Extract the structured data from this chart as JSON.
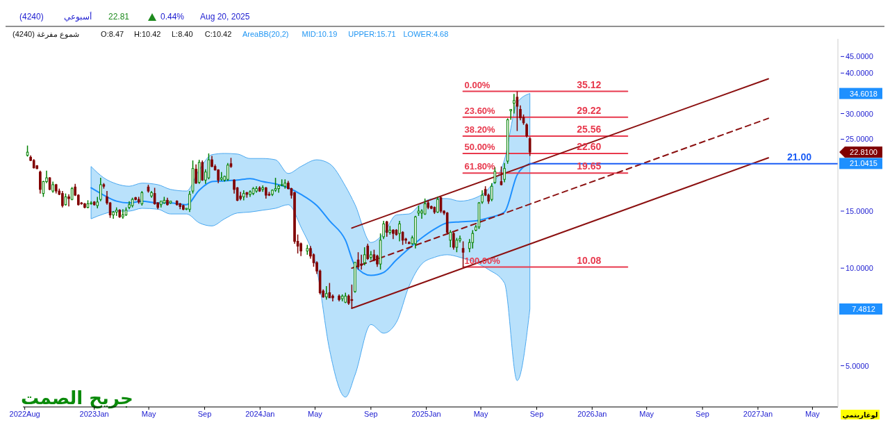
{
  "chart_data": {
    "type": "candlestick",
    "log": true,
    "xlim": [
      "2022-07-28",
      "2027-06-26"
    ],
    "xticks": [
      {
        "value": "2022-08-01",
        "label": "2022Aug"
      },
      {
        "value": "2023-01-01",
        "label": "2023Jan"
      },
      {
        "value": "2023-05-01",
        "label": "May"
      },
      {
        "value": "2023-09-01",
        "label": "Sep"
      },
      {
        "value": "2024-01-01",
        "label": "2024Jan"
      },
      {
        "value": "2024-05-01",
        "label": "May"
      },
      {
        "value": "2024-09-01",
        "label": "Sep"
      },
      {
        "value": "2025-01-01",
        "label": "2025Jan"
      },
      {
        "value": "2025-05-01",
        "label": "May"
      },
      {
        "value": "2025-09-01",
        "label": "Sep"
      },
      {
        "value": "2026-01-01",
        "label": "2026Jan"
      },
      {
        "value": "2026-05-01",
        "label": "May"
      },
      {
        "value": "2026-09-01",
        "label": "Sep"
      },
      {
        "value": "2027-01-01",
        "label": "2027Jan"
      },
      {
        "value": "2027-05-01",
        "label": "May"
      }
    ],
    "ylim": [
      3.73,
      51
    ],
    "yticks": [
      {
        "value": 5,
        "label": "5.0000"
      },
      {
        "value": 10,
        "label": "10.0000"
      },
      {
        "value": 15,
        "label": "15.0000"
      },
      {
        "value": 25,
        "label": "25.0000"
      },
      {
        "value": 30,
        "label": "30.0000"
      },
      {
        "value": 40,
        "label": "40.0000"
      },
      {
        "value": 45,
        "label": "45.0000"
      }
    ],
    "annotations": [
      "(4240)",
      "أسبوعي",
      "22.81",
      "0.44%",
      "Aug 20, 2025",
      "(4240) شموع مفرغة",
      "O:8.47",
      "H:10.42",
      "L:8.40",
      "C:10.42",
      "MID:10.19",
      "UPPER:15.71",
      "LOWER:4.68",
      "جريح الصمت",
      "لوغاريتمي",
      "34.6018",
      "22.8100",
      "21.0415",
      "7.4812",
      {
        "text": "0.00%",
        "x": "2025-03-23",
        "y": 35.12
      },
      {
        "text": "35.12",
        "x": "2026-03-20",
        "y": 35.12
      },
      {
        "text": "23.60%",
        "x": "2025-03-23",
        "y": 29.22
      },
      {
        "text": "29.22",
        "x": "2026-03-20",
        "y": 29.22
      },
      {
        "text": "38.20%",
        "x": "2025-03-23",
        "y": 25.56
      },
      {
        "text": "25.56",
        "x": "2026-03-20",
        "y": 25.56
      },
      {
        "text": "50.00%",
        "x": "2025-03-23",
        "y": 22.6
      },
      {
        "text": "22.60",
        "x": "2026-03-20",
        "y": 22.6
      },
      {
        "text": "61.80%",
        "x": "2025-03-23",
        "y": 19.65
      },
      {
        "text": "19.65",
        "x": "2026-03-20",
        "y": 19.65
      },
      {
        "text": "100.00%",
        "x": "2025-03-23",
        "y": 10.08
      },
      {
        "text": "10.08",
        "x": "2026-03-20",
        "y": 10.08
      },
      {
        "text": "21.00",
        "x": "2027-06-26",
        "y": 21
      }
    ],
    "series": [
      {
        "type": "line",
        "name": "AreaBB(20,2)",
        "color": "#1e90ff",
        "x": [
          "2022-12-25",
          "2023-01-22",
          "2023-02-19",
          "2023-03-19",
          "2023-04-16",
          "2023-05-21",
          "2023-06-18",
          "2023-07-23",
          "2023-08-20",
          "2023-09-17",
          "2023-10-15",
          "2023-11-12",
          "2023-12-10",
          "2024-01-07",
          "2024-02-04",
          "2024-03-03",
          "2024-03-31",
          "2024-05-05",
          "2024-06-02",
          "2024-07-07",
          "2024-07-28",
          "2024-09-01",
          "2024-09-29",
          "2024-10-27",
          "2024-11-24",
          "2024-12-22",
          "2025-01-19",
          "2025-02-16",
          "2025-03-16",
          "2025-04-20",
          "2025-05-18",
          "2025-06-22",
          "2025-07-20",
          "2025-08-17"
        ],
        "values": [
          17.7,
          16.8,
          16.1,
          15.9,
          16.1,
          15.9,
          15.9,
          15.7,
          17.4,
          18.5,
          18.6,
          18.7,
          18.9,
          18.5,
          18.2,
          17.7,
          16.9,
          15.6,
          14.0,
          12.2,
          10.19,
          9.5,
          9.7,
          10.6,
          11.5,
          12.4,
          13.2,
          13.8,
          13.9,
          14.0,
          14.3,
          14.9,
          19.4,
          21.0415
        ],
        "upper": [
          20.6,
          19.0,
          18.2,
          17.9,
          18.3,
          18.1,
          17.5,
          17.3,
          20.1,
          22.4,
          22.6,
          22.5,
          21.8,
          21.8,
          21.6,
          19.6,
          20.6,
          21.6,
          21.0,
          17.9,
          15.71,
          12.0,
          12.8,
          14.6,
          14.7,
          15.9,
          16.4,
          16.4,
          16.1,
          16.5,
          17.6,
          21.6,
          32.4,
          34.6018
        ],
        "lower": [
          14.2,
          14.7,
          15.0,
          15.0,
          15.3,
          15.2,
          14.7,
          14.7,
          13.8,
          13.5,
          14.2,
          14.8,
          14.9,
          15.1,
          15.3,
          15.7,
          13.4,
          9.9,
          5.6,
          4.0,
          4.68,
          6.7,
          6.3,
          6.8,
          8.8,
          10.3,
          10.8,
          11.0,
          10.8,
          10.4,
          9.9,
          9.0,
          4.5,
          7.4812
        ]
      },
      {
        "type": "candlestick",
        "colors": [
          "#008000",
          "#800000",
          "#800000",
          "#800000",
          "#800000",
          "#008000",
          "#008000",
          "#800000",
          "#008000",
          "#800000",
          "#800000",
          "#800000",
          "#008000",
          "#800000",
          "#008000",
          "#800000",
          "#800000",
          "#800000",
          "#800000",
          "#008000",
          "#008000",
          "#800000",
          "#008000",
          "#008000",
          "#800000",
          "#800000",
          "#800000",
          "#008000",
          "#008000",
          "#800000",
          "#008000",
          "#008000",
          "#008000",
          "#008000",
          "#800000",
          "#800000",
          "#008000",
          "#800000",
          "#008000",
          "#800000",
          "#800000",
          "#008000",
          "#008000",
          "#800000",
          "#008000",
          "#800000",
          "#800000",
          "#800000",
          "#008000",
          "#008000",
          "#008000",
          "#800000",
          "#008000",
          "#800000",
          "#008000",
          "#008000",
          "#800000",
          "#800000",
          "#800000",
          "#008000",
          "#008000",
          "#008000",
          "#800000",
          "#800000",
          "#800000",
          "#800000",
          "#008000",
          "#800000",
          "#008000",
          "#008000",
          "#008000",
          "#800000",
          "#008000",
          "#800000",
          "#800000",
          "#008000",
          "#008000",
          "#008000",
          "#008000",
          "#008000",
          "#800000",
          "#800000",
          "#800000",
          "#800000",
          "#800000",
          "#008000",
          "#800000",
          "#800000",
          "#800000",
          "#800000",
          "#800000",
          "#008000",
          "#800000",
          "#800000",
          "#800000",
          "#008000",
          "#008000",
          "#800000",
          "#800000",
          "#008000",
          "#800000",
          "#800000",
          "#008000",
          "#800000",
          "#008000",
          "#800000",
          "#800000",
          "#008000",
          "#008000",
          "#800000",
          "#008000",
          "#800000",
          "#800000",
          "#008000",
          "#800000",
          "#800000",
          "#800000",
          "#008000",
          "#008000",
          "#008000",
          "#008000",
          "#008000",
          "#800000",
          "#800000",
          "#800000",
          "#008000",
          "#800000",
          "#800000",
          "#800000",
          "#008000",
          "#800000",
          "#008000",
          "#008000",
          "#800000",
          "#008000",
          "#008000",
          "#008000",
          "#008000",
          "#008000",
          "#800000",
          "#800000",
          "#008000",
          "#008000",
          "#800000",
          "#008000",
          "#008000",
          "#008000",
          "#008000",
          "#800000",
          "#800000",
          "#800000",
          "#800000",
          "#800000"
        ],
        "x": [
          "2022-08-07",
          "2022-08-14",
          "2022-08-21",
          "2022-08-28",
          "2022-09-04",
          "2022-09-11",
          "2022-09-18",
          "2022-09-25",
          "2022-10-02",
          "2022-10-09",
          "2022-10-16",
          "2022-10-23",
          "2022-10-30",
          "2022-11-06",
          "2022-11-13",
          "2022-11-20",
          "2022-11-27",
          "2022-12-04",
          "2022-12-11",
          "2022-12-18",
          "2022-12-25",
          "2023-01-01",
          "2023-01-08",
          "2023-01-15",
          "2023-01-22",
          "2023-01-29",
          "2023-02-05",
          "2023-02-12",
          "2023-02-19",
          "2023-02-26",
          "2023-03-05",
          "2023-03-12",
          "2023-03-19",
          "2023-03-26",
          "2023-04-02",
          "2023-04-09",
          "2023-04-16",
          "2023-04-30",
          "2023-05-07",
          "2023-05-14",
          "2023-05-21",
          "2023-05-28",
          "2023-06-04",
          "2023-06-11",
          "2023-06-18",
          "2023-07-02",
          "2023-07-09",
          "2023-07-16",
          "2023-07-23",
          "2023-07-30",
          "2023-08-06",
          "2023-08-13",
          "2023-08-20",
          "2023-08-27",
          "2023-09-03",
          "2023-09-10",
          "2023-09-17",
          "2023-09-24",
          "2023-10-01",
          "2023-10-08",
          "2023-10-15",
          "2023-10-22",
          "2023-10-29",
          "2023-11-05",
          "2023-11-12",
          "2023-11-19",
          "2023-11-26",
          "2023-12-03",
          "2023-12-10",
          "2023-12-17",
          "2023-12-24",
          "2023-12-31",
          "2024-01-07",
          "2024-01-14",
          "2024-01-21",
          "2024-01-28",
          "2024-02-04",
          "2024-02-11",
          "2024-02-18",
          "2024-02-25",
          "2024-03-03",
          "2024-03-10",
          "2024-03-17",
          "2024-03-24",
          "2024-03-31",
          "2024-04-14",
          "2024-04-21",
          "2024-04-28",
          "2024-05-05",
          "2024-05-12",
          "2024-05-19",
          "2024-05-26",
          "2024-06-02",
          "2024-06-09",
          "2024-06-23",
          "2024-06-30",
          "2024-07-07",
          "2024-07-14",
          "2024-07-21",
          "2024-07-28",
          "2024-08-04",
          "2024-08-11",
          "2024-08-18",
          "2024-08-25",
          "2024-09-01",
          "2024-09-08",
          "2024-09-15",
          "2024-09-22",
          "2024-09-29",
          "2024-10-06",
          "2024-10-13",
          "2024-10-20",
          "2024-10-27",
          "2024-11-03",
          "2024-11-10",
          "2024-11-17",
          "2024-11-24",
          "2024-12-01",
          "2024-12-08",
          "2024-12-15",
          "2024-12-22",
          "2024-12-29",
          "2025-01-05",
          "2025-01-12",
          "2025-01-19",
          "2025-01-26",
          "2025-02-02",
          "2025-02-09",
          "2025-02-16",
          "2025-02-23",
          "2025-03-02",
          "2025-03-09",
          "2025-03-16",
          "2025-03-23",
          "2025-04-06",
          "2025-04-13",
          "2025-04-20",
          "2025-04-27",
          "2025-05-04",
          "2025-05-11",
          "2025-05-18",
          "2025-05-25",
          "2025-06-01",
          "2025-06-15",
          "2025-06-22",
          "2025-06-29",
          "2025-07-06",
          "2025-07-13",
          "2025-07-20",
          "2025-07-27",
          "2025-08-03",
          "2025-08-10",
          "2025-08-17"
        ],
        "ohlc": [
          [
            22.3,
            23.9,
            22.1,
            22.8
          ],
          [
            22.0,
            22.3,
            21.4,
            21.5
          ],
          [
            21.5,
            21.7,
            20.3,
            20.4
          ],
          [
            20.7,
            20.8,
            20.2,
            20.3
          ],
          [
            19.8,
            20.0,
            17.0,
            17.5
          ],
          [
            17.0,
            18.6,
            16.6,
            18.5
          ],
          [
            18.5,
            20.0,
            18.3,
            19.0
          ],
          [
            19.0,
            19.1,
            17.4,
            17.5
          ],
          [
            17.3,
            18.5,
            17.1,
            18.1
          ],
          [
            18.1,
            18.2,
            17.0,
            17.3
          ],
          [
            17.3,
            17.6,
            16.8,
            16.9
          ],
          [
            17.0,
            17.3,
            15.4,
            15.6
          ],
          [
            15.7,
            17.0,
            15.6,
            16.6
          ],
          [
            16.6,
            16.9,
            15.5,
            16.4
          ],
          [
            16.3,
            17.8,
            16.2,
            17.6
          ],
          [
            17.8,
            18.2,
            16.7,
            16.8
          ],
          [
            16.8,
            16.9,
            15.6,
            15.7
          ],
          [
            15.9,
            16.0,
            15.7,
            15.8
          ],
          [
            15.8,
            15.9,
            15.3,
            15.4
          ],
          [
            15.4,
            16.2,
            15.3,
            15.8
          ],
          [
            15.8,
            16.1,
            15.7,
            15.9
          ],
          [
            16.0,
            16.1,
            15.6,
            15.7
          ],
          [
            15.6,
            16.6,
            15.3,
            16.0
          ],
          [
            16.3,
            19.0,
            16.1,
            18.1
          ],
          [
            18.1,
            18.3,
            17.6,
            17.9
          ],
          [
            16.6,
            17.3,
            15.7,
            15.9
          ],
          [
            15.9,
            16.0,
            14.3,
            14.6
          ],
          [
            14.6,
            15.0,
            14.2,
            14.9
          ],
          [
            14.9,
            15.4,
            14.5,
            15.1
          ],
          [
            15.1,
            15.2,
            14.3,
            14.4
          ],
          [
            14.4,
            15.2,
            14.2,
            14.6
          ],
          [
            14.6,
            15.4,
            14.5,
            15.1
          ],
          [
            15.4,
            16.1,
            15.2,
            15.7
          ],
          [
            15.6,
            16.5,
            15.4,
            16.3
          ],
          [
            16.5,
            16.6,
            16.2,
            16.3
          ],
          [
            16.3,
            16.6,
            15.8,
            16.0
          ],
          [
            15.8,
            17.3,
            15.6,
            17.1
          ],
          [
            17.8,
            18.1,
            17.1,
            17.3
          ],
          [
            16.7,
            17.3,
            16.5,
            17.1
          ],
          [
            17.0,
            17.7,
            15.7,
            15.8
          ],
          [
            15.9,
            16.0,
            15.2,
            15.4
          ],
          [
            15.7,
            16.1,
            15.4,
            16.1
          ],
          [
            15.9,
            16.6,
            15.8,
            16.2
          ],
          [
            16.2,
            16.5,
            15.6,
            15.7
          ],
          [
            15.9,
            16.1,
            15.8,
            16.1
          ],
          [
            16.1,
            16.2,
            15.6,
            15.7
          ],
          [
            15.8,
            15.9,
            15.2,
            15.5
          ],
          [
            15.6,
            15.7,
            15.1,
            15.2
          ],
          [
            15.2,
            15.3,
            15.1,
            15.3
          ],
          [
            15.2,
            17.3,
            14.9,
            16.9
          ],
          [
            17.3,
            21.5,
            17.0,
            20.3
          ],
          [
            20.2,
            20.9,
            18.2,
            18.3
          ],
          [
            18.4,
            21.6,
            18.2,
            21.2
          ],
          [
            21.2,
            21.5,
            18.6,
            18.7
          ],
          [
            18.7,
            20.2,
            18.2,
            19.8
          ],
          [
            19.0,
            22.6,
            18.8,
            21.6
          ],
          [
            21.6,
            22.2,
            20.5,
            20.6
          ],
          [
            20.6,
            20.9,
            20.0,
            20.1
          ],
          [
            20.1,
            20.2,
            18.3,
            18.7
          ],
          [
            18.8,
            19.8,
            18.6,
            19.0
          ],
          [
            18.7,
            19.3,
            18.5,
            19.2
          ],
          [
            18.8,
            21.1,
            18.6,
            20.8
          ],
          [
            21.0,
            21.9,
            20.4,
            20.6
          ],
          [
            18.7,
            18.8,
            17.0,
            17.5
          ],
          [
            17.7,
            17.8,
            16.1,
            16.2
          ],
          [
            16.7,
            17.2,
            16.2,
            16.4
          ],
          [
            16.6,
            17.4,
            16.2,
            17.0
          ],
          [
            17.1,
            17.2,
            16.5,
            16.9
          ],
          [
            16.9,
            17.4,
            16.6,
            17.2
          ],
          [
            17.0,
            17.8,
            16.8,
            17.6
          ],
          [
            17.3,
            17.9,
            17.1,
            17.6
          ],
          [
            17.7,
            17.9,
            17.2,
            17.3
          ],
          [
            17.5,
            18.0,
            17.2,
            17.7
          ],
          [
            17.7,
            17.8,
            16.4,
            16.8
          ],
          [
            16.9,
            17.2,
            16.7,
            16.8
          ],
          [
            16.9,
            17.5,
            16.7,
            17.4
          ],
          [
            17.4,
            19.0,
            17.2,
            17.6
          ],
          [
            17.6,
            18.1,
            17.1,
            17.9
          ],
          [
            18.0,
            18.8,
            17.9,
            18.1
          ],
          [
            17.9,
            18.8,
            17.6,
            18.3
          ],
          [
            18.3,
            18.6,
            17.5,
            17.6
          ],
          [
            17.6,
            17.7,
            16.4,
            16.8
          ],
          [
            17.1,
            17.2,
            11.9,
            12.1
          ],
          [
            12.1,
            12.7,
            11.1,
            11.7
          ],
          [
            11.9,
            12.0,
            10.9,
            11.3
          ],
          [
            11.3,
            11.8,
            11.0,
            11.5
          ],
          [
            11.5,
            11.7,
            10.7,
            10.9
          ],
          [
            11.0,
            11.1,
            10.1,
            10.4
          ],
          [
            10.4,
            10.5,
            9.6,
            9.8
          ],
          [
            9.8,
            9.9,
            8.3,
            8.4
          ],
          [
            8.5,
            8.6,
            8.1,
            8.15
          ],
          [
            8.15,
            8.8,
            8.0,
            8.35
          ],
          [
            8.4,
            9.0,
            8.1,
            8.1
          ],
          [
            8.2,
            8.3,
            7.9,
            8.1
          ],
          [
            8.2,
            8.3,
            7.9,
            8.0
          ],
          [
            8.05,
            8.3,
            7.9,
            8.2
          ],
          [
            7.85,
            8.4,
            7.8,
            8.2
          ],
          [
            8.2,
            8.3,
            7.7,
            7.8
          ],
          [
            8.0,
            8.9,
            7.5,
            7.95
          ],
          [
            8.47,
            10.42,
            8.4,
            10.42
          ],
          [
            10.6,
            11.2,
            9.9,
            10.1
          ],
          [
            10.3,
            11.0,
            9.9,
            10.2
          ],
          [
            10.4,
            11.6,
            10.2,
            11.0
          ],
          [
            11.7,
            11.9,
            10.6,
            10.7
          ],
          [
            10.8,
            11.3,
            10.6,
            11.0
          ],
          [
            11.0,
            11.4,
            10.5,
            10.6
          ],
          [
            10.9,
            11.0,
            10.1,
            10.3
          ],
          [
            10.3,
            12.8,
            9.9,
            12.2
          ],
          [
            12.5,
            14.0,
            12.3,
            13.7
          ],
          [
            13.9,
            14.0,
            12.5,
            12.9
          ],
          [
            12.9,
            13.5,
            12.7,
            13.1
          ],
          [
            13.1,
            13.2,
            12.3,
            12.8
          ],
          [
            13.1,
            13.2,
            12.6,
            12.7
          ],
          [
            12.8,
            14.0,
            12.1,
            13.7
          ],
          [
            12.9,
            13.0,
            11.8,
            12.2
          ],
          [
            12.3,
            12.4,
            11.9,
            12.2
          ],
          [
            12.0,
            12.1,
            11.9,
            11.9
          ],
          [
            11.9,
            12.6,
            11.8,
            12.4
          ],
          [
            11.9,
            14.5,
            11.5,
            14.4
          ],
          [
            14.8,
            15.6,
            14.5,
            15.0
          ],
          [
            14.8,
            15.2,
            14.2,
            15.0
          ],
          [
            14.7,
            16.4,
            14.6,
            15.8
          ],
          [
            15.9,
            16.2,
            15.2,
            15.4
          ],
          [
            15.5,
            15.6,
            15.2,
            15.3
          ],
          [
            15.4,
            15.5,
            14.7,
            14.9
          ],
          [
            14.9,
            16.6,
            14.8,
            16.3
          ],
          [
            16.5,
            16.7,
            14.8,
            15.0
          ],
          [
            15.0,
            15.1,
            14.6,
            14.8
          ],
          [
            14.8,
            14.9,
            12.7,
            12.9
          ],
          [
            12.2,
            13.1,
            11.6,
            12.9
          ],
          [
            12.8,
            12.9,
            11.4,
            11.6
          ],
          [
            11.6,
            12.4,
            11.2,
            12.2
          ],
          [
            12.2,
            12.6,
            12.0,
            12.35
          ],
          [
            11.5,
            12.1,
            10.08,
            11.2
          ],
          [
            11.5,
            12.3,
            11.2,
            12.0
          ],
          [
            12.0,
            13.1,
            11.5,
            12.8
          ],
          [
            13.1,
            13.6,
            13.0,
            13.4
          ],
          [
            13.4,
            16.0,
            13.2,
            15.9
          ],
          [
            16.0,
            17.4,
            15.8,
            16.8
          ],
          [
            17.5,
            17.9,
            16.7,
            16.8
          ],
          [
            16.8,
            17.0,
            15.8,
            16.1
          ],
          [
            16.3,
            18.3,
            16.1,
            17.9
          ],
          [
            18.4,
            20.5,
            18.2,
            19.9
          ],
          [
            18.5,
            20.6,
            18.0,
            18.1
          ],
          [
            18.8,
            21.1,
            18.4,
            20.3
          ],
          [
            21.4,
            29.0,
            21.0,
            28.7
          ],
          [
            30.6,
            31.0,
            28.7,
            30.9
          ],
          [
            32.3,
            34.5,
            30.0,
            32.9
          ],
          [
            33.7,
            35.12,
            26.5,
            31.6
          ],
          [
            30.9,
            31.8,
            28.6,
            29.1
          ],
          [
            29.2,
            29.8,
            27.7,
            28.1
          ],
          [
            27.7,
            28.0,
            25.3,
            25.6
          ],
          [
            25.1,
            25.4,
            22.2,
            22.81
          ]
        ]
      },
      {
        "type": "line",
        "color": "#e8394d",
        "x": [
          "2025-03-23",
          "2026-03-20"
        ],
        "values": [
          35.12,
          35.12
        ]
      },
      {
        "type": "line",
        "color": "#e8394d",
        "x": [
          "2025-03-23",
          "2026-03-20"
        ],
        "values": [
          29.22,
          29.22
        ]
      },
      {
        "type": "line",
        "color": "#e8394d",
        "x": [
          "2025-03-23",
          "2026-03-20"
        ],
        "values": [
          25.56,
          25.56
        ]
      },
      {
        "type": "line",
        "color": "#e8394d",
        "x": [
          "2025-03-23",
          "2026-03-20"
        ],
        "values": [
          22.6,
          22.6
        ]
      },
      {
        "type": "line",
        "color": "#e8394d",
        "x": [
          "2025-03-23",
          "2026-03-20"
        ],
        "values": [
          19.65,
          19.65
        ]
      },
      {
        "type": "line",
        "color": "#e8394d",
        "x": [
          "2025-03-23",
          "2026-03-20"
        ],
        "values": [
          10.08,
          10.08
        ]
      },
      {
        "type": "line",
        "color": "#8b1010",
        "x": [
          "2024-07-21",
          "2027-01-24"
        ],
        "values": [
          13.3,
          38.4
        ]
      },
      {
        "type": "line",
        "color": "#8b1010",
        "line_style": "dashed",
        "x": [
          "2024-07-21",
          "2027-01-24"
        ],
        "values": [
          10.0,
          29.0
        ]
      },
      {
        "type": "line",
        "color": "#8b1010",
        "x": [
          "2024-07-21",
          "2027-01-24"
        ],
        "values": [
          7.52,
          21.9
        ]
      },
      {
        "type": "line",
        "color": "#1a5cf5",
        "x": [
          "2025-08-17",
          "2027-06-26"
        ],
        "values": [
          21,
          21
        ]
      }
    ]
  }
}
